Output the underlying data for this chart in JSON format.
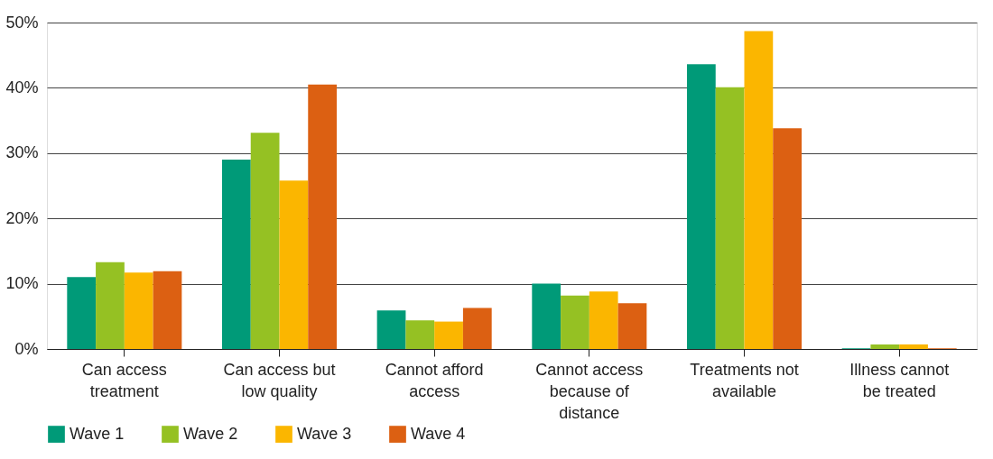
{
  "chart_data": {
    "type": "bar",
    "categories": [
      "Can access\ntreatment",
      "Can access but\nlow quality",
      "Cannot afford\naccess",
      "Cannot access\nbecause of\ndistance",
      "Treatments not\navailable",
      "Illness cannot\nbe treated"
    ],
    "series": [
      {
        "name": "Wave 1",
        "color": "#009a78",
        "values": [
          11.0,
          29.0,
          5.9,
          10.0,
          43.6,
          0.1
        ]
      },
      {
        "name": "Wave 2",
        "color": "#95c123",
        "values": [
          13.3,
          33.1,
          4.4,
          8.2,
          40.1,
          0.7
        ]
      },
      {
        "name": "Wave 3",
        "color": "#fbb600",
        "values": [
          11.7,
          25.8,
          4.2,
          8.8,
          48.7,
          0.7
        ]
      },
      {
        "name": "Wave 4",
        "color": "#dc6012",
        "values": [
          11.9,
          40.5,
          6.3,
          7.0,
          33.8,
          0.1
        ]
      }
    ],
    "ylim": [
      0,
      50
    ],
    "yticks": [
      {
        "value": 0,
        "label": "0%"
      },
      {
        "value": 10,
        "label": "10%"
      },
      {
        "value": 20,
        "label": "20%"
      },
      {
        "value": 30,
        "label": "30%"
      },
      {
        "value": 40,
        "label": "40%"
      },
      {
        "value": 50,
        "label": "50%"
      }
    ],
    "grid": "y",
    "legend": "bottom left"
  }
}
